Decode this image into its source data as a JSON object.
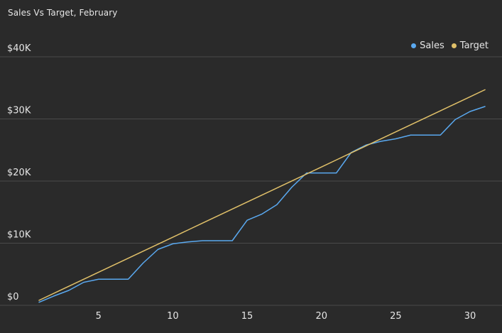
{
  "chart_data": {
    "type": "line",
    "title": "Sales Vs Target, February",
    "x": [
      1,
      2,
      3,
      4,
      5,
      6,
      7,
      8,
      9,
      10,
      11,
      12,
      13,
      14,
      15,
      16,
      17,
      18,
      19,
      20,
      21,
      22,
      23,
      24,
      25,
      26,
      27,
      28,
      29,
      30,
      31
    ],
    "series": [
      {
        "name": "Sales",
        "color": "#5aa9f0",
        "values": [
          500,
          1500,
          2400,
          3700,
          4200,
          4200,
          4200,
          6800,
          9000,
          9900,
          10200,
          10400,
          10400,
          10400,
          13700,
          14700,
          16200,
          19000,
          21300,
          21300,
          21300,
          24600,
          25800,
          26400,
          26800,
          27400,
          27400,
          27400,
          29900,
          31200,
          32000
        ]
      },
      {
        "name": "Target",
        "color": "#e0c069",
        "values": [
          800,
          1930,
          3060,
          4190,
          5320,
          6450,
          7580,
          8710,
          9840,
          10970,
          12100,
          13230,
          14360,
          15490,
          16620,
          17750,
          18880,
          20010,
          21140,
          22270,
          23400,
          24530,
          25660,
          26790,
          27920,
          29050,
          30180,
          31310,
          32440,
          33570,
          34700
        ]
      }
    ],
    "xticks": [
      5,
      10,
      15,
      20,
      25,
      30
    ],
    "yticks": [
      0,
      10000,
      20000,
      30000,
      40000
    ],
    "ytick_labels": [
      "$0",
      "$10K",
      "$20K",
      "$30K",
      "$40K"
    ],
    "xlim": [
      1,
      31
    ],
    "ylim": [
      0,
      40000
    ],
    "grid": "horizontal",
    "legend_position": "top-right"
  }
}
